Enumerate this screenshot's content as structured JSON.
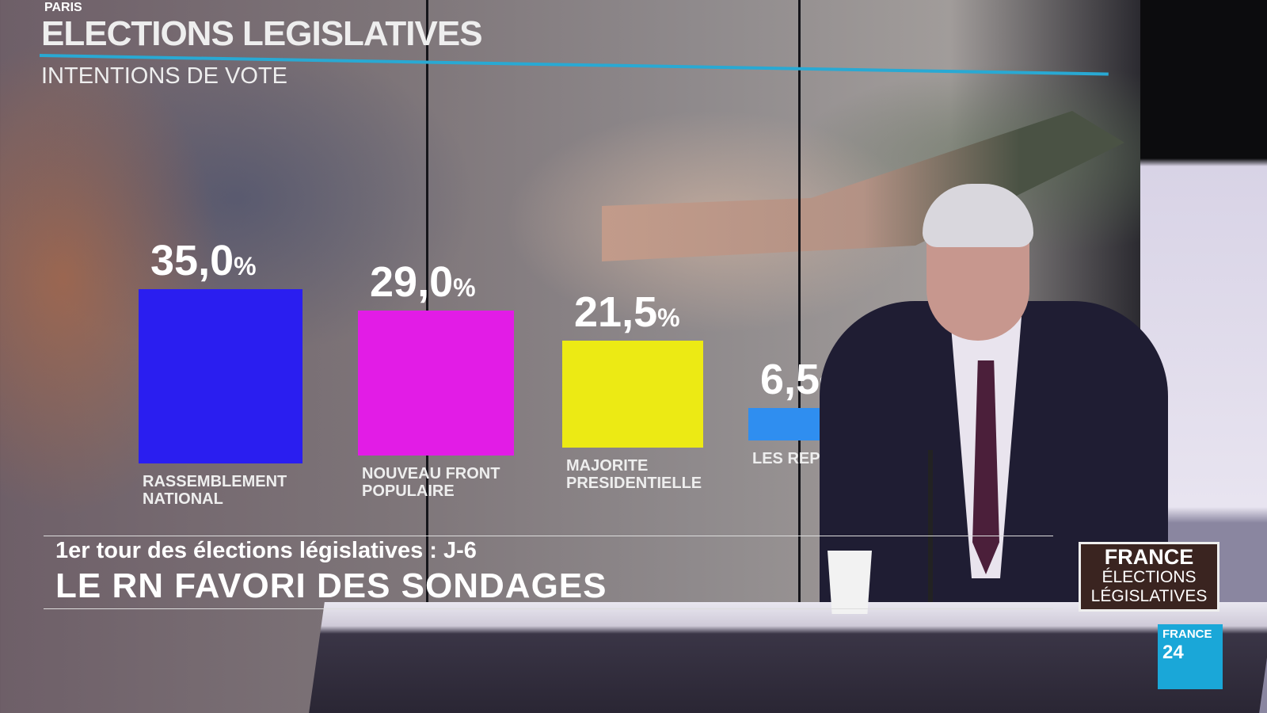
{
  "overlay": {
    "title": "ELECTIONS LEGISLATIVES",
    "location": "PARIS",
    "subtitle": "INTENTIONS DE VOTE"
  },
  "chart_data": {
    "type": "bar",
    "title": "ELECTIONS LEGISLATIVES",
    "subtitle": "INTENTIONS DE VOTE",
    "categories": [
      "RASSEMBLEMENT\nNATIONAL",
      "NOUVEAU FRONT\nPOPULAIRE",
      "MAJORITE\nPRESIDENTIELLE",
      "LES REPUBLICAINS"
    ],
    "values": [
      35.0,
      29.0,
      21.5,
      6.5
    ],
    "value_labels": [
      "35,0",
      "29,0",
      "21,5",
      "6,5"
    ],
    "unit": "%",
    "colors": [
      "#2a1ef0",
      "#e21ce6",
      "#ecea14",
      "#2f8ef0"
    ]
  },
  "lower_third": {
    "kicker": "1er tour des élections législatives : J-6",
    "headline": "LE RN FAVORI DES SONDAGES"
  },
  "program_logo": {
    "line1": "FRANCE",
    "line2": "ÉLECTIONS",
    "line3": "LÉGISLATIVES"
  },
  "channel_logo": {
    "line1": "FRANCE",
    "line2": "24"
  }
}
